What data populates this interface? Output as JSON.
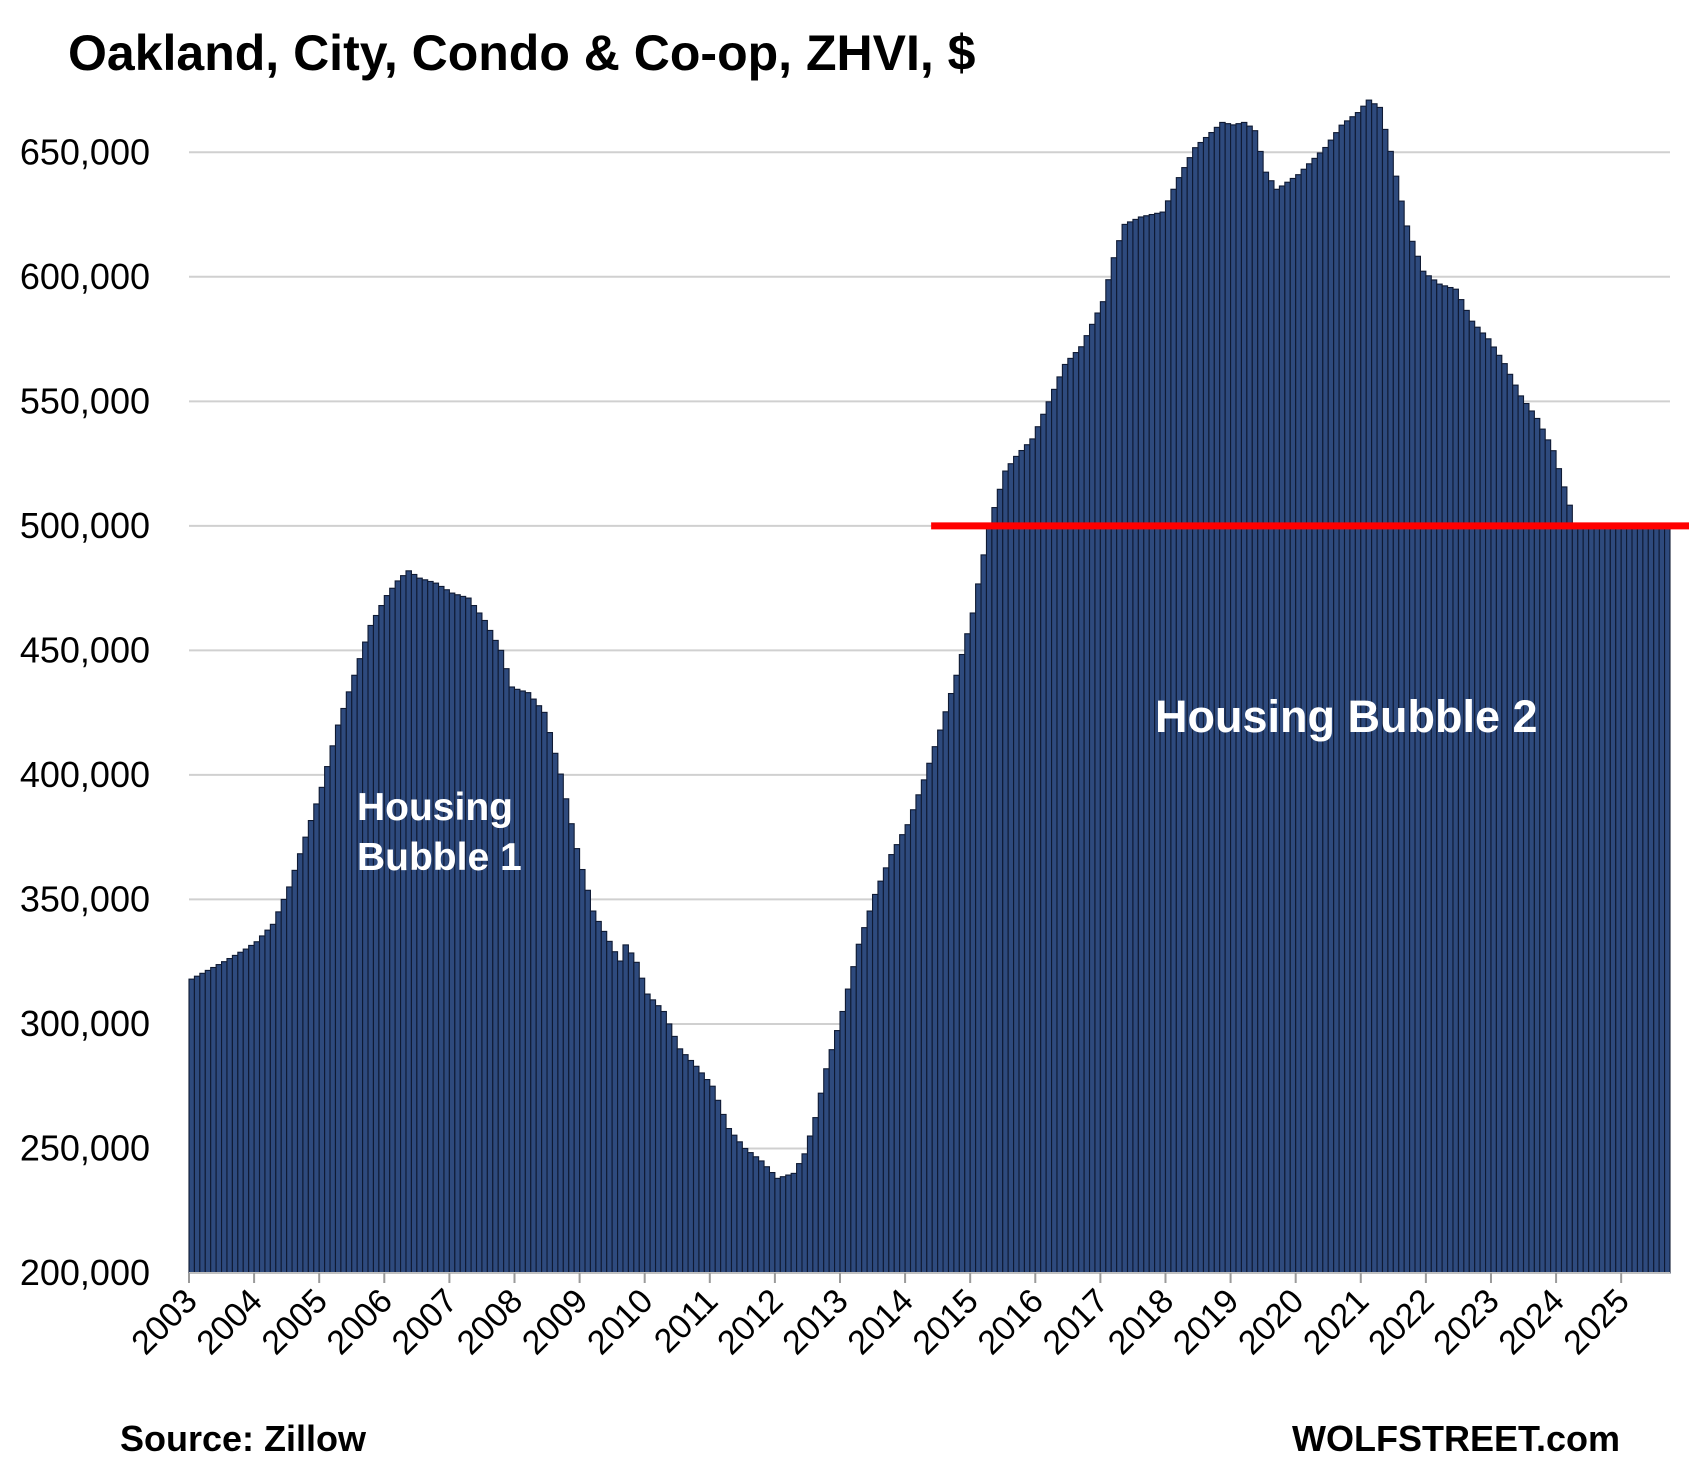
{
  "chart_data": {
    "type": "bar",
    "title": "Oakland, City, Condo & Co-op, ZHVI, $",
    "xlabel": "",
    "ylabel": "",
    "ylim": [
      200000,
      675000
    ],
    "grid": true,
    "legend": "none",
    "x_tick_labels": [
      "2003",
      "2004",
      "2005",
      "2006",
      "2007",
      "2008",
      "2009",
      "2010",
      "2011",
      "2012",
      "2013",
      "2014",
      "2015",
      "2016",
      "2017",
      "2018",
      "2019",
      "2020",
      "2021",
      "2022",
      "2023",
      "2024",
      "2025"
    ],
    "y_tick_labels": [
      "200,000",
      "250,000",
      "300,000",
      "350,000",
      "400,000",
      "450,000",
      "500,000",
      "550,000",
      "600,000",
      "650,000"
    ],
    "anchors": [
      [
        2003.0,
        318000
      ],
      [
        2003.5,
        325000
      ],
      [
        2003.83,
        330000
      ],
      [
        2004.0,
        333000
      ],
      [
        2004.25,
        340000
      ],
      [
        2004.5,
        355000
      ],
      [
        2004.75,
        375000
      ],
      [
        2005.0,
        395000
      ],
      [
        2005.25,
        420000
      ],
      [
        2005.5,
        440000
      ],
      [
        2005.75,
        460000
      ],
      [
        2006.0,
        472000
      ],
      [
        2006.17,
        478000
      ],
      [
        2006.33,
        482000
      ],
      [
        2006.5,
        479000
      ],
      [
        2006.75,
        477000
      ],
      [
        2007.0,
        473000
      ],
      [
        2007.25,
        471000
      ],
      [
        2007.5,
        462000
      ],
      [
        2007.75,
        450000
      ],
      [
        2007.92,
        435000
      ],
      [
        2008.17,
        433000
      ],
      [
        2008.42,
        425000
      ],
      [
        2008.67,
        400000
      ],
      [
        2008.92,
        370000
      ],
      [
        2009.17,
        345000
      ],
      [
        2009.42,
        333000
      ],
      [
        2009.58,
        325000
      ],
      [
        2009.67,
        332000
      ],
      [
        2009.83,
        325000
      ],
      [
        2010.0,
        312000
      ],
      [
        2010.25,
        305000
      ],
      [
        2010.5,
        290000
      ],
      [
        2010.75,
        283000
      ],
      [
        2011.0,
        275000
      ],
      [
        2011.25,
        258000
      ],
      [
        2011.5,
        250000
      ],
      [
        2011.75,
        245000
      ],
      [
        2012.0,
        238000
      ],
      [
        2012.25,
        240000
      ],
      [
        2012.42,
        248000
      ],
      [
        2012.58,
        262000
      ],
      [
        2012.75,
        282000
      ],
      [
        2013.0,
        305000
      ],
      [
        2013.25,
        332000
      ],
      [
        2013.5,
        352000
      ],
      [
        2013.75,
        368000
      ],
      [
        2014.0,
        380000
      ],
      [
        2014.25,
        398000
      ],
      [
        2014.5,
        418000
      ],
      [
        2014.75,
        440000
      ],
      [
        2015.0,
        465000
      ],
      [
        2015.25,
        500000
      ],
      [
        2015.5,
        522000
      ],
      [
        2015.67,
        528000
      ],
      [
        2015.92,
        535000
      ],
      [
        2016.17,
        550000
      ],
      [
        2016.42,
        565000
      ],
      [
        2016.67,
        572000
      ],
      [
        2017.0,
        590000
      ],
      [
        2017.17,
        608000
      ],
      [
        2017.33,
        621000
      ],
      [
        2017.58,
        624000
      ],
      [
        2017.92,
        626000
      ],
      [
        2018.17,
        640000
      ],
      [
        2018.42,
        652000
      ],
      [
        2018.67,
        658000
      ],
      [
        2018.83,
        662000
      ],
      [
        2019.0,
        661000
      ],
      [
        2019.17,
        662000
      ],
      [
        2019.33,
        659000
      ],
      [
        2019.5,
        642000
      ],
      [
        2019.67,
        635000
      ],
      [
        2020.0,
        641000
      ],
      [
        2020.42,
        652000
      ],
      [
        2020.67,
        661000
      ],
      [
        2020.92,
        666000
      ],
      [
        2021.08,
        671000
      ],
      [
        2021.25,
        668000
      ],
      [
        2021.42,
        650000
      ],
      [
        2021.67,
        620000
      ],
      [
        2021.92,
        602000
      ],
      [
        2022.17,
        597000
      ],
      [
        2022.42,
        595000
      ],
      [
        2022.67,
        582000
      ],
      [
        2022.92,
        575000
      ],
      [
        2023.17,
        565000
      ],
      [
        2023.42,
        552000
      ],
      [
        2023.67,
        543000
      ],
      [
        2023.92,
        530000
      ],
      [
        2024.17,
        508000
      ],
      [
        2024.25,
        500000
      ]
    ],
    "reference_line": {
      "value": 500000,
      "color": "#ff0000"
    },
    "annotations": [
      {
        "text": [
          "Housing",
          "Bubble 1"
        ]
      },
      {
        "text": [
          "Housing Bubble 2"
        ]
      }
    ],
    "bar_color": "#2e4a7d",
    "bar_edge_color": "#0f1a33"
  },
  "footer": {
    "source": "Source: Zillow",
    "brand": "WOLFSTREET.com"
  }
}
